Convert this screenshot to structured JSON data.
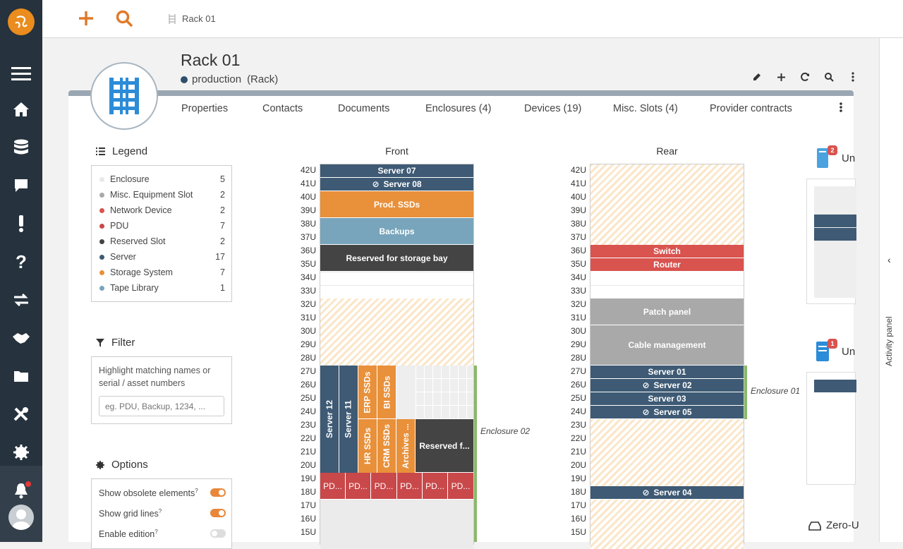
{
  "breadcrumb": {
    "label": "Rack 01"
  },
  "header": {
    "title": "Rack 01",
    "status": "production",
    "type": "(Rack)"
  },
  "tabs": [
    {
      "label": "Properties"
    },
    {
      "label": "Contacts"
    },
    {
      "label": "Documents"
    },
    {
      "label": "Enclosures (4)"
    },
    {
      "label": "Devices (19)"
    },
    {
      "label": "Misc. Slots (4)"
    },
    {
      "label": "Provider contracts"
    }
  ],
  "legend": {
    "title": "Legend",
    "items": [
      {
        "label": "Enclosure",
        "count": "5",
        "color": "#eeeeee"
      },
      {
        "label": "Misc. Equipment Slot",
        "count": "2",
        "color": "#a9a9a9"
      },
      {
        "label": "Network Device",
        "count": "2",
        "color": "#d9534f"
      },
      {
        "label": "PDU",
        "count": "7",
        "color": "#c9484a"
      },
      {
        "label": "Reserved Slot",
        "count": "2",
        "color": "#444444"
      },
      {
        "label": "Server",
        "count": "17",
        "color": "#3e5a74"
      },
      {
        "label": "Storage System",
        "count": "7",
        "color": "#e8903a"
      },
      {
        "label": "Tape Library",
        "count": "1",
        "color": "#78a5bb"
      }
    ]
  },
  "filter": {
    "title": "Filter",
    "hint": "Highlight matching names or serial / asset numbers",
    "placeholder": "eg. PDU, Backup, 1234, ..."
  },
  "options": {
    "title": "Options",
    "items": [
      {
        "label": "Show obsolete elements",
        "on": true
      },
      {
        "label": "Show grid lines",
        "on": true
      },
      {
        "label": "Enable edition",
        "on": false
      }
    ]
  },
  "front": {
    "title": "Front",
    "slots": [
      {
        "label": "Server 07"
      },
      {
        "label": "Server 08"
      },
      {
        "label": "Prod. SSDs"
      },
      {
        "label": "Backups"
      },
      {
        "label": "Reserved for storage bay"
      }
    ],
    "enclosure_items": [
      {
        "label": "Server 12"
      },
      {
        "label": "Server 11"
      },
      {
        "label": "ERP SSDs"
      },
      {
        "label": "BI SSDs"
      },
      {
        "label": "HR SSDs"
      },
      {
        "label": "CRM SSDs"
      },
      {
        "label": "Archives ..."
      },
      {
        "label": "Reserved f..."
      }
    ],
    "pdus": [
      "PD...",
      "PD...",
      "PD...",
      "PD...",
      "PD...",
      "PD..."
    ],
    "enclosure_label": "Enclosure 02"
  },
  "rear": {
    "title": "Rear",
    "slots": [
      {
        "label": "Switch"
      },
      {
        "label": "Router"
      },
      {
        "label": "Patch panel"
      },
      {
        "label": "Cable management"
      },
      {
        "label": "Server 01"
      },
      {
        "label": "Server 02"
      },
      {
        "label": "Server 03"
      },
      {
        "label": "Server 05"
      },
      {
        "label": "Server 04"
      }
    ],
    "enclosure_label": "Enclosure 01"
  },
  "units": [
    "42U",
    "41U",
    "40U",
    "39U",
    "38U",
    "37U",
    "36U",
    "35U",
    "34U",
    "33U",
    "32U",
    "31U",
    "30U",
    "29U",
    "28U",
    "27U",
    "26U",
    "25U",
    "24U",
    "23U",
    "22U",
    "21U",
    "20U",
    "19U",
    "18U",
    "17U",
    "16U",
    "15U"
  ],
  "right_cards": [
    {
      "title": "Un",
      "badge": "2"
    },
    {
      "title": "Un",
      "badge": "1"
    },
    {
      "title": "Zero-U"
    }
  ],
  "activity_panel": {
    "label": "Activity panel"
  }
}
